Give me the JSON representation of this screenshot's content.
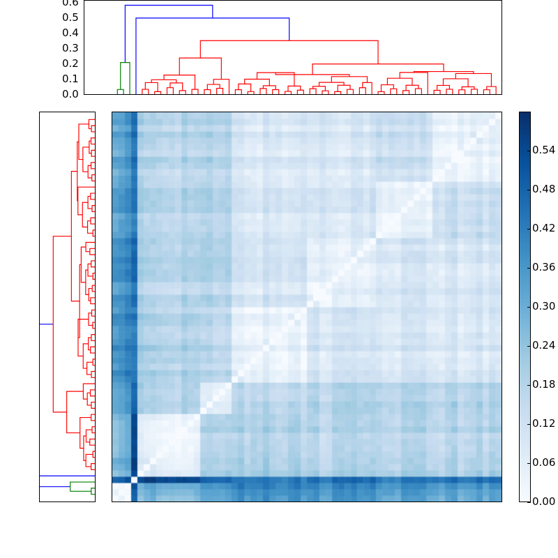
{
  "chart_data": {
    "type": "heatmap",
    "title": "",
    "description": "Clustered distance matrix with dendrograms (top and left) and colorbar",
    "matrix_size": 62,
    "colormap": "Blues",
    "vmin": 0.0,
    "vmax": 0.6,
    "colorbar": {
      "ticks": [
        "0.00",
        "0.06",
        "0.12",
        "0.18",
        "0.24",
        "0.30",
        "0.36",
        "0.42",
        "0.48",
        "0.54"
      ],
      "tick_values": [
        0.0,
        0.06,
        0.12,
        0.18,
        0.24,
        0.3,
        0.36,
        0.42,
        0.48,
        0.54
      ],
      "range": [
        0.0,
        0.6
      ]
    },
    "top_dendrogram": {
      "yticks": [
        "0.0",
        "0.1",
        "0.2",
        "0.3",
        "0.4",
        "0.5",
        "0.6"
      ],
      "ylim": [
        0.0,
        0.62
      ],
      "cluster_colors": {
        "green": "#008000",
        "red": "#ff0000",
        "blue": "#0000ff"
      },
      "top_merge_height": 0.59,
      "second_merge_height": 0.505,
      "red_cluster_root_height": 0.355
    },
    "left_dendrogram": {
      "cluster_colors": {
        "green": "#008000",
        "red": "#ff0000",
        "blue": "#0000ff"
      }
    },
    "groups": [
      {
        "name": "g0",
        "start": 0,
        "end": 3,
        "color": "green"
      },
      {
        "name": "g1",
        "start": 3,
        "end": 4,
        "color": "blue"
      },
      {
        "name": "g2",
        "start": 4,
        "end": 14,
        "color": "red"
      },
      {
        "name": "g3",
        "start": 14,
        "end": 19,
        "color": "red"
      },
      {
        "name": "g4",
        "start": 19,
        "end": 31,
        "color": "red"
      },
      {
        "name": "g5",
        "start": 31,
        "end": 42,
        "color": "red"
      },
      {
        "name": "g6",
        "start": 42,
        "end": 51,
        "color": "red"
      },
      {
        "name": "g7",
        "start": 51,
        "end": 62,
        "color": "red"
      }
    ],
    "block_means": [
      [
        0.05,
        0.5,
        0.3,
        0.33,
        0.4,
        0.38,
        0.36,
        0.34
      ],
      [
        0.5,
        0.0,
        0.55,
        0.45,
        0.42,
        0.44,
        0.42,
        0.43
      ],
      [
        0.3,
        0.55,
        0.06,
        0.18,
        0.2,
        0.18,
        0.19,
        0.18
      ],
      [
        0.33,
        0.45,
        0.18,
        0.04,
        0.16,
        0.17,
        0.18,
        0.17
      ],
      [
        0.4,
        0.42,
        0.2,
        0.16,
        0.05,
        0.1,
        0.1,
        0.09
      ],
      [
        0.38,
        0.44,
        0.18,
        0.17,
        0.1,
        0.05,
        0.11,
        0.1
      ],
      [
        0.36,
        0.42,
        0.19,
        0.18,
        0.1,
        0.11,
        0.04,
        0.13
      ],
      [
        0.34,
        0.43,
        0.18,
        0.17,
        0.09,
        0.1,
        0.13,
        0.04
      ]
    ]
  },
  "axes": {
    "top_dendro_ticks": [
      "0.6",
      "0.5",
      "0.4",
      "0.3",
      "0.2",
      "0.1",
      "0.0"
    ],
    "colorbar_ticks": [
      "0.54",
      "0.48",
      "0.42",
      "0.36",
      "0.30",
      "0.24",
      "0.18",
      "0.12",
      "0.06",
      "0.00"
    ]
  }
}
